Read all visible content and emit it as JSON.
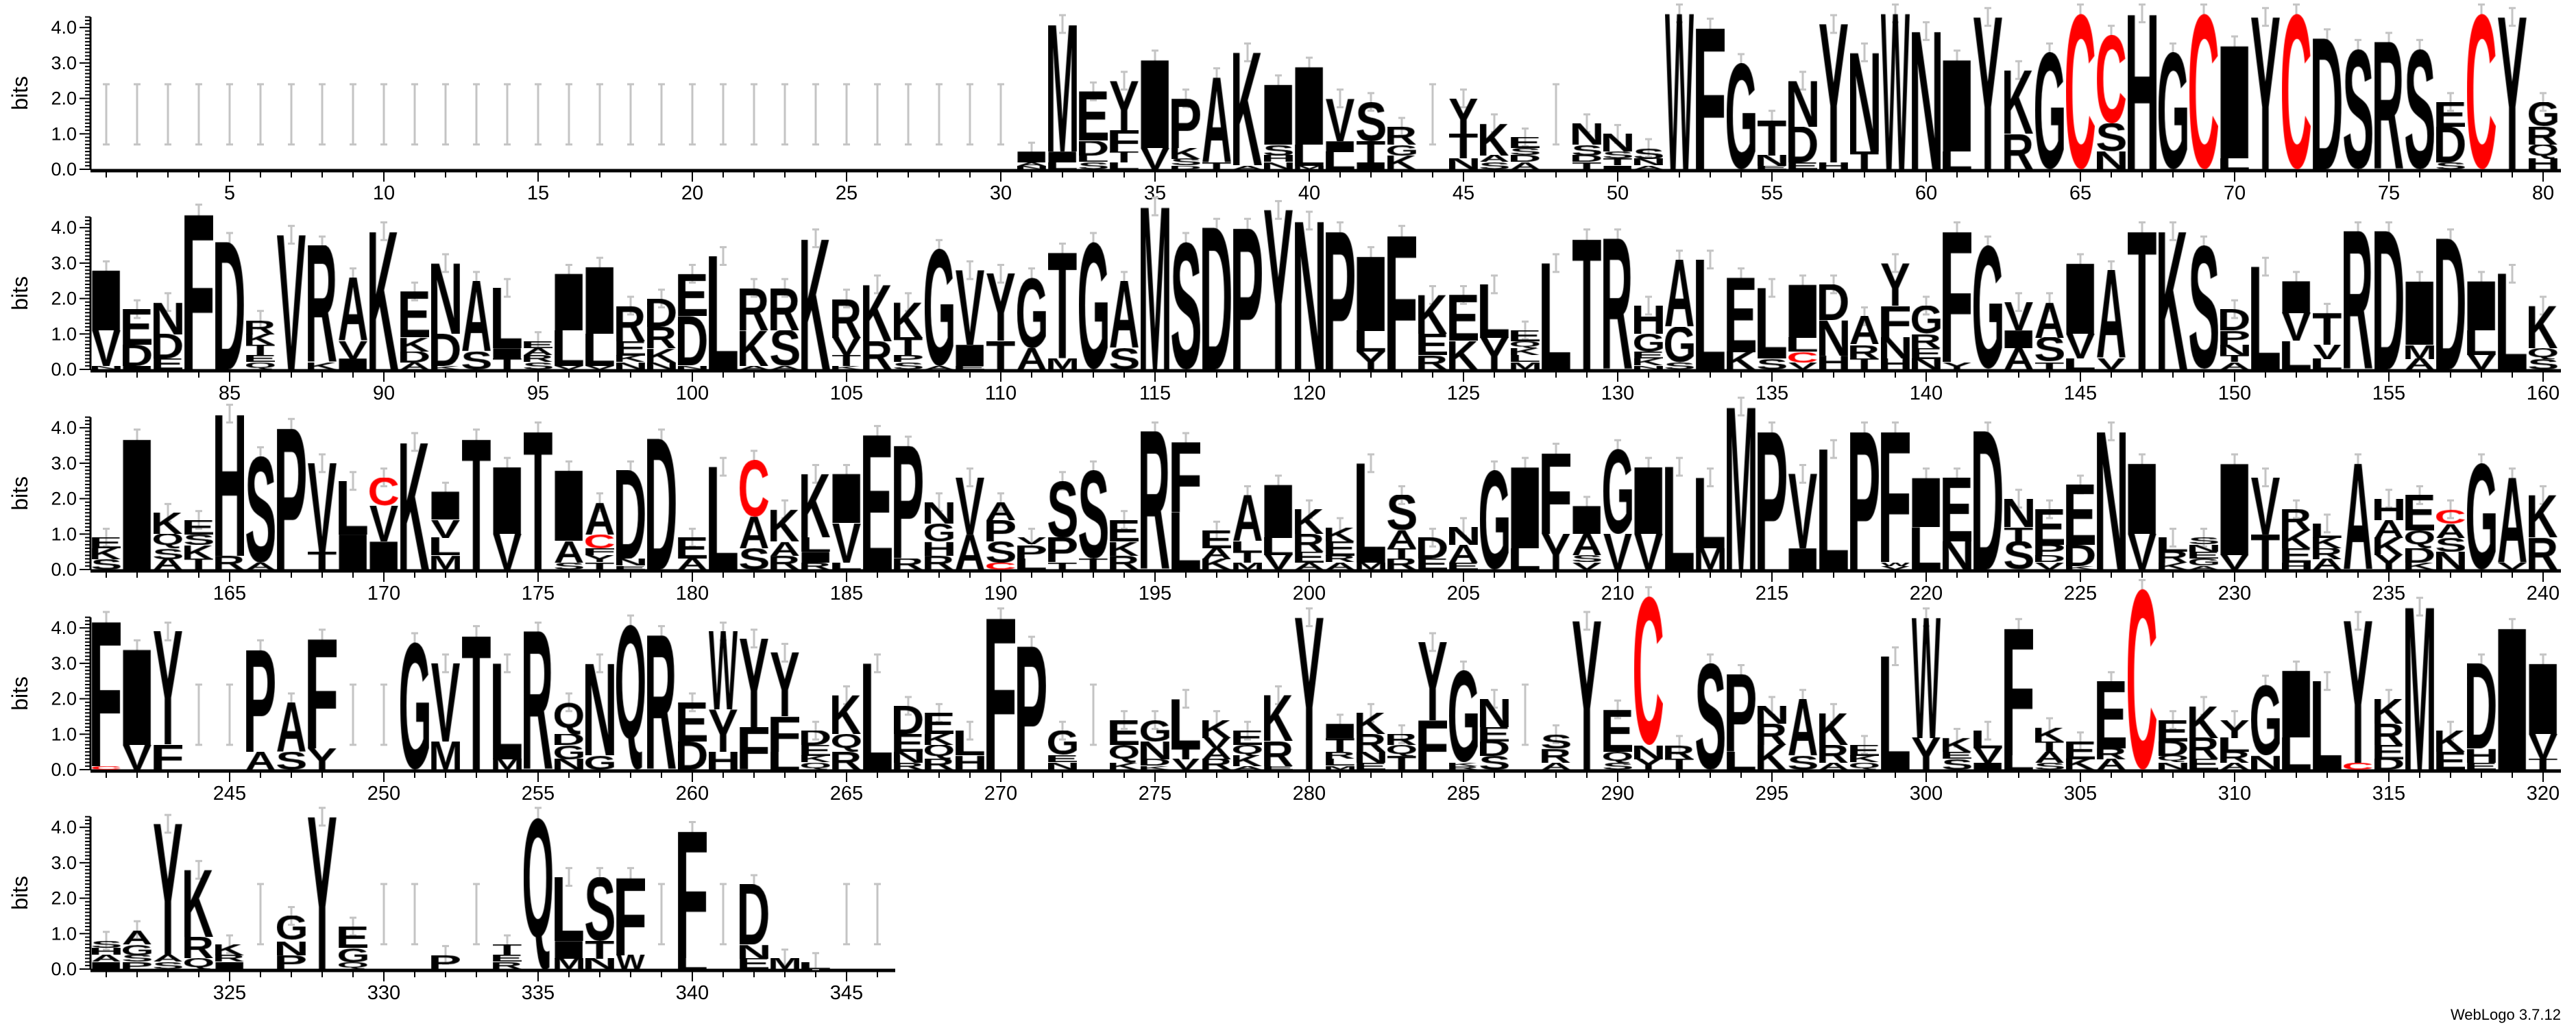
{
  "credit": "WebLogo 3.7.12",
  "chart_data": {
    "type": "sequence-logo",
    "ylabel": "bits",
    "ylim": [
      0,
      4.3
    ],
    "ytick_labels": [
      "0.0",
      "1.0",
      "2.0",
      "3.0",
      "4.0"
    ],
    "x_range": [
      1,
      346
    ],
    "positions_per_row": 80,
    "xtick_label_interval": 5,
    "grid": false,
    "colors": {
      "default": "#000000",
      "C": "#ff0000",
      "error_bar": "#c4c4c4"
    },
    "stack_format": "bottom-to-top letter+bits",
    "stacks": {
      "31": "N0.1 A0.1 I0.3",
      "32": "L0.2 I0.3 M3.6",
      "33": "S0.2 L0.2 D0.4 E1.4",
      "34": "L0.2 T0.3 F0.6 Y1.4",
      "35": "V0.6 I2.5",
      "36": "D0.1 S0.2 K0.3 P1.4",
      "37": "T0.2 A2.4",
      "38": "A0.1 K3.2",
      "39": "N0.2 H0.2 S0.3 I1.7",
      "40": "M0.1 L0.6 I2.2",
      "41": "L0.5 I0.3 V1.2",
      "42": "I0.2 T0.6 S1.1",
      "43": "K0.4 G0.3 R0.5",
      "45": "N0.3 T0.7 Y1.0",
      "46": "S0.2 A0.2 K0.9",
      "47": "A0.2 D0.2 S0.2 E0.3",
      "49": "T0.2 D0.2 S0.3 N0.6",
      "50": "I0.1 T0.2 S0.2 N0.5",
      "51": "A0.1 N0.2 S0.3",
      "52": "W4.4",
      "53": "F4.0",
      "54": "G3.0",
      "55": "E0.1 N0.3 T1.0",
      "56": "E0.2 D1.0 N1.3",
      "57": "H0.2 Y3.9",
      "58": "T0.5 N2.8",
      "59": "W4.4",
      "60": "N3.9",
      "61": "L0.5 I2.6",
      "62": "Y4.3",
      "63": "R1.0 K1.8",
      "64": "G3.3",
      "65": "C4.4",
      "66": "N0.5 S0.8 C2.5",
      "67": "H4.4",
      "68": "G3.3",
      "69": "C4.4",
      "70": "L0.3 I3.2",
      "71": "Y4.3",
      "72": "C4.4",
      "73": "D3.7",
      "74": "S3.4",
      "75": "R3.6",
      "76": "S3.4",
      "77": "S0.2 D1.0 E0.7",
      "78": "C4.4",
      "79": "Y4.3",
      "80": "H0.3 Q0.4 R0.5 G0.7",
      "81": "N0.1 V1.0 I1.7",
      "82": "I0.1 D0.6 E1.0",
      "83": "E0.3 D0.7 N0.9",
      "84": "F4.4",
      "85": "D3.6",
      "86": "Q0.2 E0.2 T0.3 K0.3 R0.4",
      "87": "V3.8",
      "88": "K0.2 R3.3",
      "89": "I0.3 V0.5 A1.8",
      "90": "K3.9",
      "91": "A0.2 D0.3 K0.4 E1.3",
      "92": "K0.1 D0.9 N2.0",
      "93": "S0.5 A2.0",
      "94": "T0.3 I0.3 L1.7",
      "95": "S0.2 R0.2 A0.2 E0.2",
      "96": "V0.1 L1.0 I1.6",
      "97": "V0.1 L0.9 I1.9",
      "98": "N0.2 K0.2 E0.4 R1.0",
      "99": "N0.2 K0.4 R0.6 D0.8",
      "100": "N0.1 D1.4 E1.2",
      "101": "L3.2",
      "102": "A0.1 K1.0 R1.2",
      "103": "A0.1 S1.0 R1.2",
      "104": "K3.7",
      "105": "K0.1 T0.3 V0.5 R1.1",
      "106": "R0.8 K1.6",
      "107": "S0.2 P0.2 T0.5 K1.0",
      "108": "A0.1 G3.3",
      "109": "E0.1 I0.6 V2.1",
      "110": "T0.8 Y1.9",
      "111": "A0.6 G2.0",
      "112": "M0.3 T3.0",
      "113": "G3.6",
      "114": "S0.6 A1.9",
      "115": "M4.6",
      "116": "S3.6",
      "117": "D4.0",
      "118": "P4.0",
      "119": "Y4.5",
      "120": "N4.2",
      "121": "P3.9",
      "122": "Y0.5 L0.6 I2.1",
      "123": "F3.8",
      "124": "R0.4 E0.6 K1.1",
      "125": "K0.8 E1.3",
      "126": "Y0.9 L1.5",
      "127": "M0.2 L0.2 K0.2 Q0.2 E0.3",
      "128": "L3.0",
      "129": "T3.7",
      "130": "R3.7",
      "131": "N0.1 K0.2 E0.2 G0.5 H0.8",
      "132": "S0.2 G1.0 A1.9",
      "133": "L3.1",
      "134": "K0.5 E2.1",
      "135": "S0.3 L2.0",
      "136": "V0.2 C0.3 L0.4 I1.5",
      "137": "H0.4 N1.0 D1.0",
      "138": "T0.3 R0.4 A0.8",
      "139": "H0.3 N0.6 F0.9 Y1.2",
      "140": "N0.3 E0.3 R0.4 G0.8",
      "141": "Y0.2 F3.7",
      "142": "G3.5",
      "143": "A0.6 I0.5 V0.8",
      "144": "T0.2 S0.7 A1.0",
      "145": "L0.3 V0.7 I2.0",
      "146": "V0.3 A2.5",
      "147": "T3.9",
      "148": "K3.9",
      "149": "S3.5",
      "150": "A0.2 T0.2 N0.3 P0.4 D0.6",
      "151": "L2.9",
      "152": "L0.8 V0.8 I0.9",
      "153": "L0.3 V0.4 T0.9",
      "154": "R3.9",
      "155": "D3.9",
      "156": "A0.3 M0.4 I1.8",
      "157": "D3.7",
      "158": "V0.4 L0.7 I1.4",
      "159": "L2.7",
      "160": "S0.3 Q0.3 K1.2",
      "161": "S0.3 K0.3 E0.3",
      "162": "I3.7",
      "163": "A0.3 S0.3 Q0.4 K0.6",
      "164": "T0.3 K0.4 S0.3 E0.4",
      "165": "R0.4 H4.0",
      "166": "A0.2 S3.0",
      "167": "P4.0",
      "168": "T0.5 V2.5",
      "169": "I1.0 L1.5",
      "170": "I0.8 V1.0 C0.8",
      "171": "K3.6",
      "172": "M0.4 L0.5 V0.5 I0.8",
      "173": "T3.7",
      "174": "V1.0 I1.9",
      "175": "T3.9",
      "176": "S0.2 A0.6 I2.0",
      "177": "T0.2 Y0.2 F0.2 C0.4 A0.9",
      "178": "E0.1 N0.2 D2.5",
      "179": "D3.7",
      "180": "A0.3 E0.6",
      "181": "L2.9",
      "182": "S0.6 A0.9 C1.6",
      "183": "R0.4 A0.4 K0.9",
      "184": "R0.2 I0.3 L0.4 K1.8",
      "185": "L0.2 V1.1 I1.4",
      "186": "E3.8",
      "187": "R0.3 P3.2",
      "188": "R0.4 H0.4 G0.5 N0.6",
      "189": "A1.0 V1.6",
      "190": "C0.2 S0.6 P0.6 A0.5",
      "191": "L0.3 P0.4 V0.2",
      "192": "T0.2 P0.7 S1.6",
      "193": "T0.3 S2.5",
      "194": "R0.4 K0.4 E0.6",
      "195": "R3.9",
      "196": "L1.6 F2.0",
      "197": "K0.3 A0.3 E0.5",
      "198": "M0.2 T0.3 L0.3 A1.3",
      "199": "V0.4 L0.5 I1.5",
      "200": "A0.2 E0.3 R0.5 K0.7",
      "201": "A0.2 R0.2 E0.4 K0.4",
      "202": "M0.2 L2.8",
      "203": "R0.3 T0.3 A0.5 S1.0",
      "204": "E0.3 D0.6",
      "205": "E0.2 A0.5 N0.5",
      "206": "G2.8",
      "207": "L0.6 I2.3",
      "208": "Y1.0 F2.3",
      "209": "V0.2 S0.2 A0.6 I0.8",
      "210": "V1.0 G2.4",
      "211": "V1.0 I1.9",
      "212": "L2.9",
      "213": "M0.6 L2.0",
      "214": "M4.6",
      "215": "P3.9",
      "216": "I0.6 V2.1",
      "217": "L3.4",
      "218": "P3.9",
      "219": "V0.1 W0.1 F3.7",
      "220": "L1.2 I1.4",
      "221": "N0.8 E1.8",
      "222": "D3.9",
      "223": "S0.8 T0.4 N0.8",
      "224": "V0.2 D0.2 P0.3 E1.0",
      "225": "K0.1 D0.6 E1.7",
      "226": "N3.9",
      "227": "V1.0 I2.0",
      "228": "K0.2 R0.3 L0.4",
      "229": "A0.1 G0.2 E0.2 N0.2 S0.2",
      "230": "V0.4 I2.6",
      "231": "T1.0 V1.6",
      "232": "H0.2 E0.4 K0.5 R0.6",
      "233": "A0.3 R0.3 K0.3 L0.4",
      "234": "A3.0",
      "235": "Y0.4 K0.5 A0.5 H0.6",
      "236": "K0.2 D0.4 Q0.5 E1.0",
      "237": "N0.5 S0.4 A0.4 C0.4",
      "238": "G3.0",
      "239": "V0.2 A2.4",
      "240": "R0.9 K1.2",
      "241": "C0.1 F4.1",
      "242": "V0.7 I2.7",
      "243": "F0.7 Y3.2",
      "246": "A0.5 P2.9",
      "247": "S0.5 A1.4",
      "248": "Y0.6 F3.1",
      "251": "G3.6",
      "252": "M0.8 V2.2",
      "253": "T3.8",
      "254": "M0.3 L2.7",
      "255": "R3.9",
      "256": "N0.3 G0.4 D0.3 Q0.9",
      "257": "G0.4 N2.6",
      "258": "Q4.1",
      "259": "R3.8",
      "260": "D0.8 E1.1",
      "261": "H0.5 Y1.2 W2.2",
      "262": "F1.2 Y2.5",
      "263": "L0.5 F1.0 Y1.8",
      "264": "Q0.2 K0.2 E0.3 D0.4",
      "265": "R0.5 Q0.5 K1.1",
      "266": "L3.0",
      "267": "R0.2 N0.3 E0.5 D0.8",
      "268": "R0.3 Q0.4 K0.3 E0.6",
      "269": "H0.4 L0.7",
      "270": "F4.3",
      "271": "P3.5",
      "272": "N0.2 E0.2 G0.7",
      "274": "K0.2 Q0.5 E0.7",
      "275": "K0.1 D0.2 N0.5 G0.6",
      "276": "V0.3 T0.3 L1.4",
      "277": "R0.3 A0.3 V0.3 K0.5",
      "278": "A0.1 K0.3 Q0.3 E0.4",
      "279": "E0.1 R0.7 K1.3",
      "280": "Y4.3",
      "281": "M0.1 L0.2 R0.2 T0.4 I0.4",
      "282": "E0.2 N0.3 R0.5 K0.6",
      "283": "T0.4 Q0.3 R0.3",
      "284": "F1.4 Y2.2",
      "285": "R0.1 K0.1 G2.6",
      "286": "S0.4 D0.4 E0.4 N0.8",
      "288": "A0.2 R0.4 S0.4",
      "289": "Y4.2",
      "290": "S0.2 Q0.3 E1.2",
      "291": "Y0.3 N0.4 C4.2",
      "292": "T0.3 R0.4",
      "293": "S3.0",
      "294": "L0.5 P2.2",
      "295": "K0.7 R0.6 N0.5",
      "296": "S0.4 A1.6",
      "297": "A0.2 R0.5 K0.9",
      "298": "Q0.2 K0.2 E0.3",
      "299": "L3.2",
      "300": "Y0.9 W3.4",
      "301": "S0.3 E0.2 K0.4",
      "302": "I0.2 V0.4 L0.5",
      "303": "L0.4 F3.6",
      "304": "S0.2 A0.3 T0.3 K0.4",
      "305": "K0.3 E0.5",
      "306": "A0.3 R0.3 E1.9",
      "307": "C5.1",
      "308": "N0.2 Q0.2 D0.4 E0.6",
      "309": "E0.3 R0.6 K0.9",
      "310": "A0.2 R0.3 L0.4 Y0.5",
      "311": "N0.4 G2.0",
      "312": "L0.9 I1.9",
      "313": "L2.5",
      "314": "C0.2 Y4.0",
      "315": "D0.3 E0.4 R0.6 K0.7",
      "316": "M4.6",
      "317": "E0.5 K0.6",
      "318": "E0.2 H0.4 D2.4",
      "319": "I4.0",
      "320": "T0.3 V0.7 I2.0",
      "321": "I0.2 A0.2 H0.2 S0.2",
      "322": "P0.2 S0.2 G0.3 A0.4",
      "323": "S0.2 A0.2 Y3.7",
      "324": "Q0.3 R0.6 K1.9",
      "325": "I0.2 R0.2 K0.3",
      "327": "P0.4 N0.4 G0.7",
      "328": "Y4.3",
      "329": "Q0.2 G0.4 E0.6",
      "332": "P0.4",
      "334": "R0.2 E0.2 T0.3",
      "335": "Q4.3",
      "336": "M0.3 I0.5 L1.8",
      "337": "N0.3 T0.5 S1.8",
      "338": "W0.4 F2.2",
      "340": "L0.3 F3.6",
      "342": "E0.3 N0.4 D1.7",
      "343": "M0.3",
      "344": "L0.2"
    }
  }
}
